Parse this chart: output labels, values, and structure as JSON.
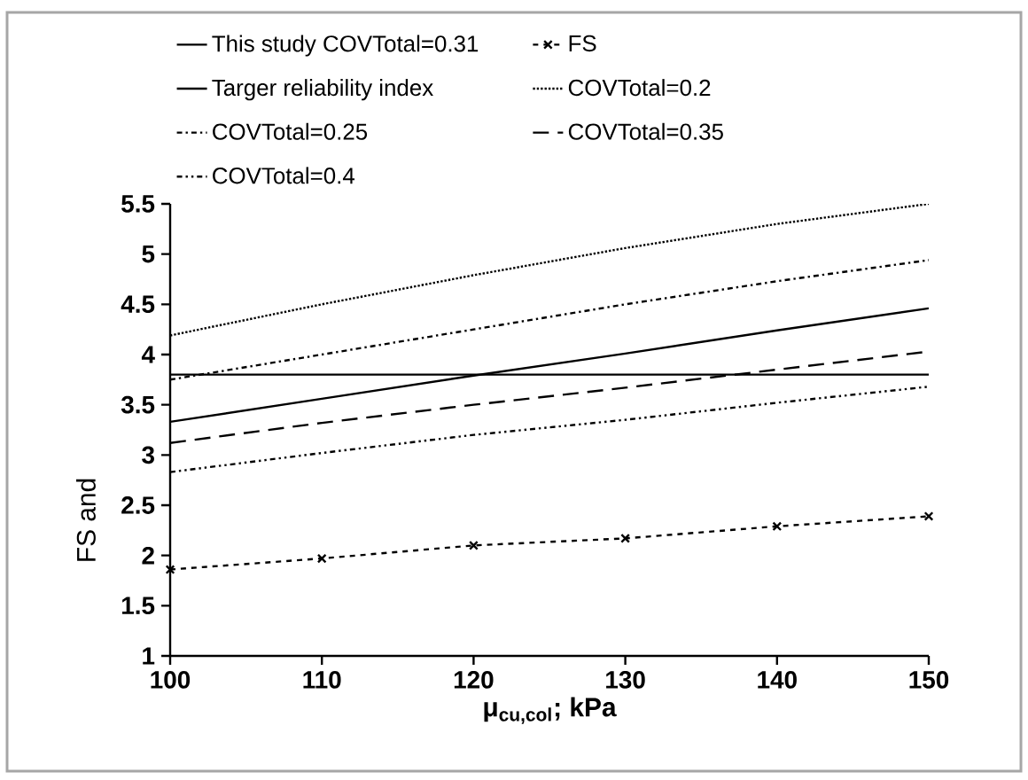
{
  "chart_data": {
    "type": "line",
    "xlabel": "μ$_{cu,col}$; kPa",
    "ylabel": "FS and",
    "x": [
      100,
      110,
      120,
      130,
      140,
      150
    ],
    "series": [
      {
        "name": "This study COVTotal=0.31",
        "color": "#000000",
        "line_style": "solid",
        "values": [
          3.33,
          3.56,
          3.79,
          4.01,
          4.24,
          4.46
        ]
      },
      {
        "name": "FS",
        "color": "#000000",
        "line_style": "dashed",
        "marker": "cross",
        "values": [
          1.86,
          1.97,
          2.1,
          2.17,
          2.29,
          2.39
        ]
      },
      {
        "name": "Targer reliability index",
        "color": "#000000",
        "line_style": "solid",
        "values": [
          3.8,
          3.8,
          3.8,
          3.8,
          3.8,
          3.8
        ]
      },
      {
        "name": "COVTotal=0.2",
        "color": "#000000",
        "line_style": "dotted",
        "values": [
          4.19,
          4.5,
          4.79,
          5.06,
          5.3,
          5.5
        ]
      },
      {
        "name": "COVTotal=0.25",
        "color": "#000000",
        "line_style": "dashdotted",
        "values": [
          3.75,
          4.0,
          4.25,
          4.5,
          4.73,
          4.94
        ]
      },
      {
        "name": "COVTotal=0.35",
        "color": "#000000",
        "line_style": "loosely dashed",
        "values": [
          3.12,
          3.32,
          3.5,
          3.67,
          3.85,
          4.03
        ]
      },
      {
        "name": "COVTotal=0.4",
        "color": "#000000",
        "line_style": "dashdotdotted",
        "values": [
          2.83,
          3.02,
          3.2,
          3.35,
          3.52,
          3.68
        ]
      }
    ],
    "xlim": [
      100,
      150
    ],
    "xticks": [
      100,
      110,
      120,
      130,
      140,
      150
    ],
    "ylim": [
      1,
      5.5
    ],
    "yticks": [
      1,
      1.5,
      2,
      2.5,
      3,
      3.5,
      4,
      4.5,
      5,
      5.5
    ],
    "grid": false,
    "legend": "top",
    "marker": "none"
  }
}
